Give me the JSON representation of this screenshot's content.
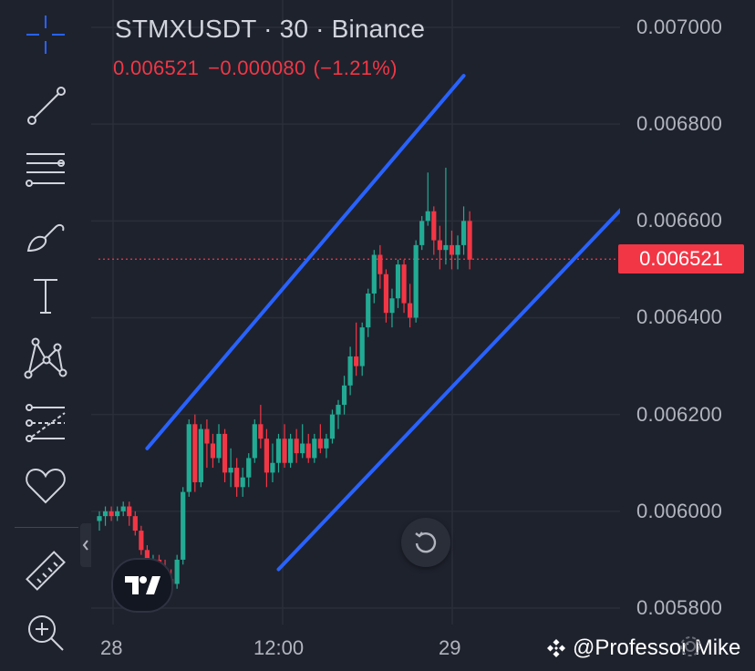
{
  "header": {
    "title": "STMXUSDT · 30 · Binance",
    "ohlc": {
      "price": "0.006521",
      "change": "−0.000080",
      "change_pct": "(−1.21%)"
    }
  },
  "current_price_label": "0.006521",
  "colors": {
    "up": "#22ab94",
    "down": "#f23645",
    "channel": "#2962ff",
    "grid": "#2a2e39",
    "background": "#1e222d"
  },
  "toolbar": {
    "items": [
      "crosshair-icon",
      "trend-line-icon",
      "fib-retracement-icon",
      "brush-icon",
      "text-icon",
      "pattern-icon",
      "prediction-icon",
      "heart-icon",
      "ruler-icon",
      "zoom-in-icon"
    ]
  },
  "watermark": "@Professor Mike",
  "chart_data": {
    "type": "candlestick",
    "symbol": "STMXUSDT",
    "interval": "30",
    "exchange": "Binance",
    "y_ticks": [
      "0.007000",
      "0.006800",
      "0.006600",
      "0.006400",
      "0.006200",
      "0.006000",
      "0.005800"
    ],
    "ylim": [
      0.00577,
      0.00705
    ],
    "x_ticks": [
      "28",
      "12:00",
      "29"
    ],
    "current_price": 0.006521,
    "candles": [
      [
        0.00598,
        0.006,
        0.00596,
        0.00599
      ],
      [
        0.00599,
        0.00601,
        0.00597,
        0.006
      ],
      [
        0.006,
        0.00601,
        0.00598,
        0.00599
      ],
      [
        0.00599,
        0.00601,
        0.00598,
        0.006
      ],
      [
        0.006,
        0.00602,
        0.00599,
        0.00601
      ],
      [
        0.00601,
        0.00602,
        0.00597,
        0.00599
      ],
      [
        0.00599,
        0.006,
        0.00595,
        0.00596
      ],
      [
        0.00596,
        0.00597,
        0.00591,
        0.00592
      ],
      [
        0.00592,
        0.00593,
        0.00588,
        0.00589
      ],
      [
        0.00589,
        0.00591,
        0.00586,
        0.0059
      ],
      [
        0.0059,
        0.00591,
        0.00585,
        0.00587
      ],
      [
        0.00587,
        0.0059,
        0.00584,
        0.00586
      ],
      [
        0.00586,
        0.00588,
        0.00583,
        0.00585
      ],
      [
        0.00585,
        0.00591,
        0.00584,
        0.0059
      ],
      [
        0.0059,
        0.00605,
        0.00589,
        0.00604
      ],
      [
        0.00604,
        0.00619,
        0.00603,
        0.00618
      ],
      [
        0.00618,
        0.0062,
        0.00604,
        0.00606
      ],
      [
        0.00606,
        0.00618,
        0.00605,
        0.00617
      ],
      [
        0.00617,
        0.00619,
        0.00609,
        0.00614
      ],
      [
        0.00614,
        0.00616,
        0.00609,
        0.00611
      ],
      [
        0.00611,
        0.00618,
        0.0061,
        0.00616
      ],
      [
        0.00616,
        0.00617,
        0.00606,
        0.00608
      ],
      [
        0.00608,
        0.00613,
        0.00605,
        0.00609
      ],
      [
        0.00609,
        0.00611,
        0.00603,
        0.00605
      ],
      [
        0.00605,
        0.00609,
        0.00603,
        0.00607
      ],
      [
        0.00607,
        0.00612,
        0.00605,
        0.00611
      ],
      [
        0.00611,
        0.00619,
        0.0061,
        0.00618
      ],
      [
        0.00618,
        0.00622,
        0.00613,
        0.00615
      ],
      [
        0.00615,
        0.00617,
        0.00605,
        0.00608
      ],
      [
        0.00608,
        0.00614,
        0.00606,
        0.0061
      ],
      [
        0.0061,
        0.00616,
        0.00608,
        0.00615
      ],
      [
        0.00615,
        0.00618,
        0.00609,
        0.0061
      ],
      [
        0.0061,
        0.00616,
        0.00609,
        0.00615
      ],
      [
        0.00615,
        0.00617,
        0.0061,
        0.00612
      ],
      [
        0.00612,
        0.00618,
        0.00611,
        0.00614
      ],
      [
        0.00614,
        0.00616,
        0.0061,
        0.00611
      ],
      [
        0.00611,
        0.00616,
        0.0061,
        0.00615
      ],
      [
        0.00615,
        0.00618,
        0.00612,
        0.00613
      ],
      [
        0.00613,
        0.00616,
        0.00611,
        0.00615
      ],
      [
        0.00615,
        0.00621,
        0.00614,
        0.0062
      ],
      [
        0.0062,
        0.00623,
        0.00617,
        0.00622
      ],
      [
        0.00622,
        0.00628,
        0.0062,
        0.00626
      ],
      [
        0.00626,
        0.00634,
        0.00624,
        0.00632
      ],
      [
        0.00632,
        0.00639,
        0.00628,
        0.0063
      ],
      [
        0.0063,
        0.00639,
        0.00628,
        0.00638
      ],
      [
        0.00638,
        0.00646,
        0.00636,
        0.00645
      ],
      [
        0.00645,
        0.00654,
        0.00643,
        0.00653
      ],
      [
        0.00653,
        0.00655,
        0.00646,
        0.00649
      ],
      [
        0.00649,
        0.0065,
        0.00639,
        0.00641
      ],
      [
        0.00641,
        0.00646,
        0.00638,
        0.00644
      ],
      [
        0.00644,
        0.00652,
        0.00642,
        0.00651
      ],
      [
        0.00651,
        0.00652,
        0.00641,
        0.00643
      ],
      [
        0.00643,
        0.00647,
        0.00638,
        0.0064
      ],
      [
        0.0064,
        0.00656,
        0.00639,
        0.00655
      ],
      [
        0.00655,
        0.00661,
        0.00654,
        0.0066
      ],
      [
        0.0066,
        0.0067,
        0.00659,
        0.00662
      ],
      [
        0.00662,
        0.00663,
        0.00653,
        0.00656
      ],
      [
        0.00656,
        0.00659,
        0.0065,
        0.00654
      ],
      [
        0.00654,
        0.00671,
        0.00651,
        0.00655
      ],
      [
        0.00655,
        0.00658,
        0.0065,
        0.00653
      ],
      [
        0.00653,
        0.00657,
        0.0065,
        0.00655
      ],
      [
        0.00655,
        0.00663,
        0.00653,
        0.0066
      ],
      [
        0.0066,
        0.00662,
        0.0065,
        0.00652
      ]
    ],
    "channel_lines": [
      {
        "name": "upper",
        "start": [
          8,
          0.00613
        ],
        "end": [
          61,
          0.0069
        ]
      },
      {
        "name": "lower",
        "start": [
          30,
          0.00588
        ],
        "end": [
          94,
          0.00671
        ]
      }
    ]
  }
}
